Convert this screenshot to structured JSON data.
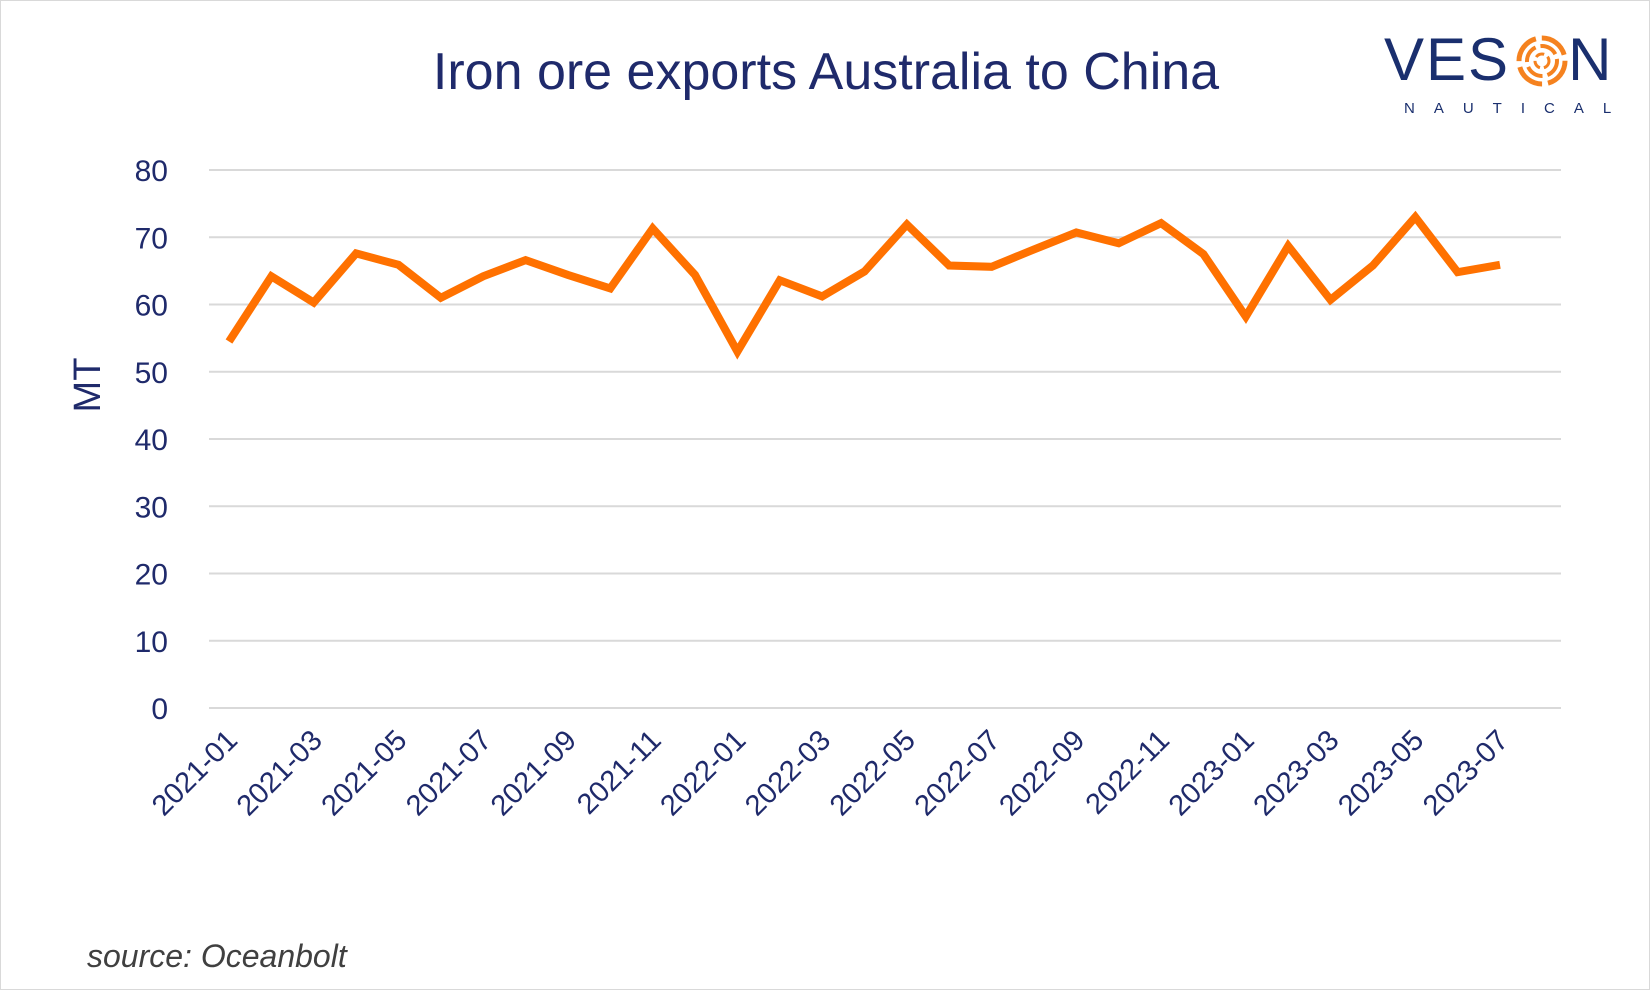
{
  "chart_data": {
    "type": "line",
    "title": "Iron ore exports Australia to China",
    "xlabel": "",
    "ylabel": "MT",
    "ylim": [
      0,
      80
    ],
    "y_ticks": [
      "0",
      "10",
      "20",
      "30",
      "40",
      "50",
      "60",
      "70",
      "80"
    ],
    "x_tick_labels": [
      "2021-01",
      "2021-03",
      "2021-05",
      "2021-07",
      "2021-09",
      "2021-11",
      "2022-01",
      "2022-03",
      "2022-05",
      "2022-07",
      "2022-09",
      "2022-11",
      "2023-01",
      "2023-03",
      "2023-05",
      "2023-07"
    ],
    "grid": "horizontal",
    "legend": "none",
    "line_color": "#ff7100",
    "x": [
      "2021-01",
      "2021-02",
      "2021-03",
      "2021-04",
      "2021-05",
      "2021-06",
      "2021-07",
      "2021-08",
      "2021-09",
      "2021-10",
      "2021-11",
      "2021-12",
      "2022-01",
      "2022-02",
      "2022-03",
      "2022-04",
      "2022-05",
      "2022-06",
      "2022-07",
      "2022-08",
      "2022-09",
      "2022-10",
      "2022-11",
      "2022-12",
      "2023-01",
      "2023-02",
      "2023-03",
      "2023-04",
      "2023-05",
      "2023-06",
      "2023-07"
    ],
    "series": [
      {
        "values": [
          54.5,
          64.2,
          60.3,
          67.6,
          65.9,
          61.0,
          64.2,
          66.6,
          64.4,
          62.4,
          71.3,
          64.4,
          53.0,
          63.6,
          61.2,
          64.9,
          71.9,
          65.8,
          65.6,
          68.2,
          70.7,
          69.1,
          72.1,
          67.5,
          58.2,
          68.7,
          60.7,
          65.8,
          73.0,
          64.8,
          65.9
        ]
      }
    ]
  },
  "logo": {
    "word": "VESON",
    "tagline": "NAUTICAL"
  },
  "footer": {
    "source": "source: Oceanbolt"
  },
  "colors": {
    "text": "#1f2a6b",
    "grid": "#d9d9d9",
    "accent": "#ff7100"
  }
}
